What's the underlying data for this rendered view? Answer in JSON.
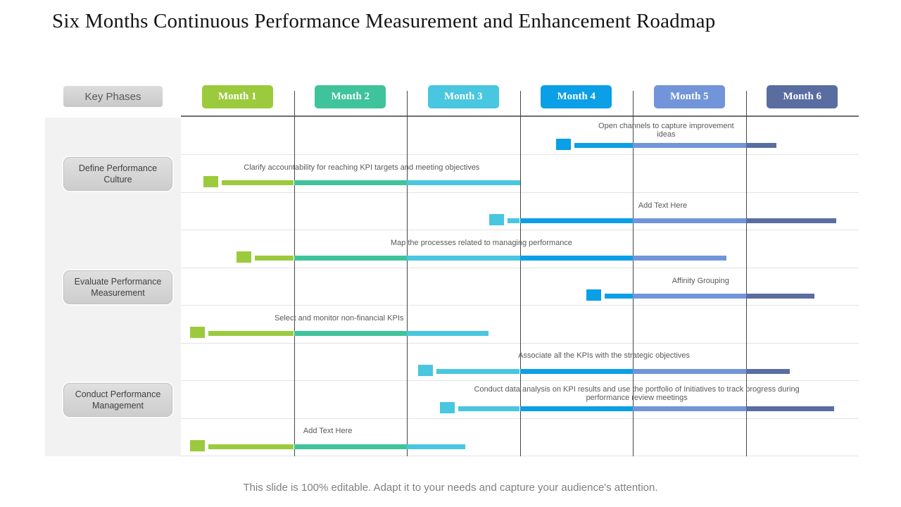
{
  "slide": {
    "title": "Six Months Continuous Performance Measurement and Enhancement Roadmap",
    "footer": "This slide is 100% editable. Adapt it to your needs and capture your audience's attention."
  },
  "key_phases_label": "Key Phases",
  "chart_data": {
    "type": "gantt",
    "unit": "month (0 = start of Month 1, 6 = end of Month 6)",
    "months": [
      {
        "label": "Month 1",
        "color": "#9bcb3d"
      },
      {
        "label": "Month 2",
        "color": "#3fc39a"
      },
      {
        "label": "Month 3",
        "color": "#49c6e0"
      },
      {
        "label": "Month 4",
        "color": "#0a9fe6"
      },
      {
        "label": "Month 5",
        "color": "#7195d8"
      },
      {
        "label": "Month 6",
        "color": "#5a6da1"
      }
    ],
    "phases": [
      {
        "label": "Define Performance Culture",
        "task_rows": [
          0,
          1,
          2
        ]
      },
      {
        "label": "Evaluate Performance Measurement",
        "task_rows": [
          3,
          4,
          5
        ]
      },
      {
        "label": "Conduct Performance Management",
        "task_rows": [
          6,
          7,
          8
        ]
      }
    ],
    "tasks": [
      {
        "label": "Open channels to capture improvement ideas",
        "start": 3.32,
        "end": 5.27,
        "label_max_width": 210
      },
      {
        "label": "Clarify accountability for reaching KPI targets and meeting objectives",
        "start": 0.2,
        "end": 3.0
      },
      {
        "label": "Add Text Here",
        "start": 2.73,
        "end": 5.8
      },
      {
        "label": "Map the processes related to managing performance",
        "start": 0.49,
        "end": 4.83
      },
      {
        "label": "Affinity Grouping",
        "start": 3.59,
        "end": 5.61
      },
      {
        "label": "Select and monitor non-financial KPIs",
        "start": 0.08,
        "end": 2.72
      },
      {
        "label": "Associate all the KPIs  with the strategic objectives",
        "start": 2.1,
        "end": 5.39
      },
      {
        "label": "Conduct data analysis on KPI results and use the portfolio of Initiatives to track progress during performance review meetings",
        "start": 2.29,
        "end": 5.78,
        "label_max_width": 480
      },
      {
        "label": "Add Text Here",
        "start": 0.08,
        "end": 2.52
      }
    ]
  }
}
